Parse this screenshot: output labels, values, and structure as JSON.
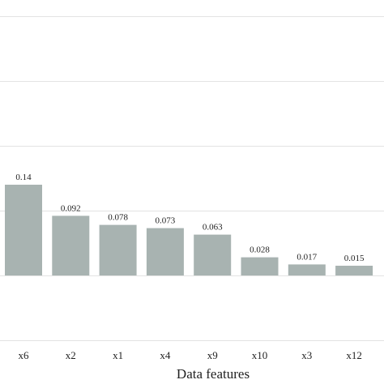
{
  "chart_data": {
    "type": "bar",
    "categories": [
      "x6",
      "x2",
      "x1",
      "x4",
      "x9",
      "x10",
      "x3",
      "x12"
    ],
    "values": [
      0.14,
      0.092,
      0.078,
      0.073,
      0.063,
      0.028,
      0.017,
      0.015
    ],
    "value_labels": [
      "0.14",
      "0.092",
      "0.078",
      "0.073",
      "0.063",
      "0.028",
      "0.017",
      "0.015"
    ],
    "xlabel": "Data features",
    "ylabel": "",
    "title": "",
    "ylim": [
      -0.1,
      0.4
    ],
    "grid": true,
    "bar_color": "#a8b3b1",
    "grid_color": "#e3e3e3"
  }
}
